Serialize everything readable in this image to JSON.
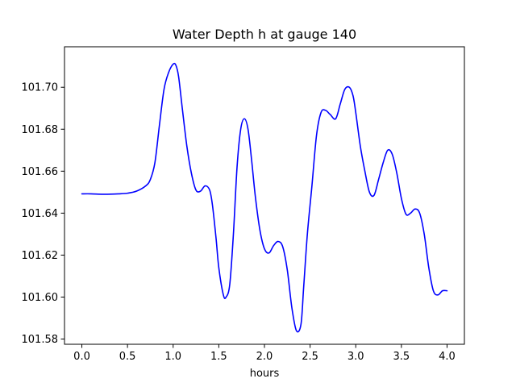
{
  "chart_data": {
    "type": "line",
    "title": "Water Depth h at gauge 140",
    "xlabel": "hours",
    "ylabel": "",
    "xlim": [
      -0.19,
      4.19
    ],
    "ylim": [
      101.5775,
      101.7193
    ],
    "xticks": [
      0.0,
      0.5,
      1.0,
      1.5,
      2.0,
      2.5,
      3.0,
      3.5,
      4.0
    ],
    "xtick_labels": [
      "0.0",
      "0.5",
      "1.0",
      "1.5",
      "2.0",
      "2.5",
      "3.0",
      "3.5",
      "4.0"
    ],
    "yticks": [
      101.58,
      101.6,
      101.62,
      101.64,
      101.66,
      101.68,
      101.7
    ],
    "ytick_labels": [
      "101.58",
      "101.60",
      "101.62",
      "101.64",
      "101.66",
      "101.68",
      "101.70"
    ],
    "grid": false,
    "series": [
      {
        "name": "",
        "color": "#0000ff",
        "x": [
          0.0,
          0.1,
          0.25,
          0.4,
          0.5,
          0.6,
          0.7,
          0.75,
          0.8,
          0.85,
          0.9,
          0.95,
          1.0,
          1.03,
          1.06,
          1.1,
          1.15,
          1.2,
          1.25,
          1.3,
          1.35,
          1.4,
          1.43,
          1.47,
          1.5,
          1.55,
          1.58,
          1.62,
          1.66,
          1.7,
          1.74,
          1.78,
          1.82,
          1.86,
          1.9,
          1.95,
          2.0,
          2.05,
          2.1,
          2.15,
          2.2,
          2.25,
          2.3,
          2.35,
          2.4,
          2.43,
          2.47,
          2.52,
          2.57,
          2.62,
          2.67,
          2.72,
          2.78,
          2.83,
          2.88,
          2.93,
          2.97,
          3.0,
          3.05,
          3.1,
          3.15,
          3.2,
          3.25,
          3.3,
          3.35,
          3.4,
          3.45,
          3.5,
          3.55,
          3.6,
          3.65,
          3.7,
          3.75,
          3.8,
          3.85,
          3.9,
          3.95,
          4.0
        ],
        "y": [
          101.6492,
          101.6492,
          101.649,
          101.6492,
          101.6495,
          101.6505,
          101.653,
          101.656,
          101.664,
          101.682,
          101.699,
          101.707,
          101.711,
          101.7105,
          101.705,
          101.69,
          101.672,
          101.659,
          101.651,
          101.6505,
          101.653,
          101.651,
          101.644,
          101.628,
          101.614,
          101.601,
          101.6,
          101.606,
          101.63,
          101.662,
          101.68,
          101.685,
          101.68,
          101.665,
          101.648,
          101.632,
          101.623,
          101.621,
          101.6245,
          101.6265,
          101.624,
          101.613,
          101.595,
          101.584,
          101.587,
          101.605,
          101.63,
          101.653,
          101.677,
          101.688,
          101.689,
          101.687,
          101.685,
          101.692,
          101.699,
          101.7,
          101.696,
          101.688,
          101.672,
          101.66,
          101.65,
          101.6485,
          101.656,
          101.664,
          101.67,
          101.668,
          101.659,
          101.647,
          101.6395,
          101.64,
          101.642,
          101.64,
          101.63,
          101.614,
          101.603,
          101.601,
          101.603,
          101.603
        ]
      }
    ]
  }
}
